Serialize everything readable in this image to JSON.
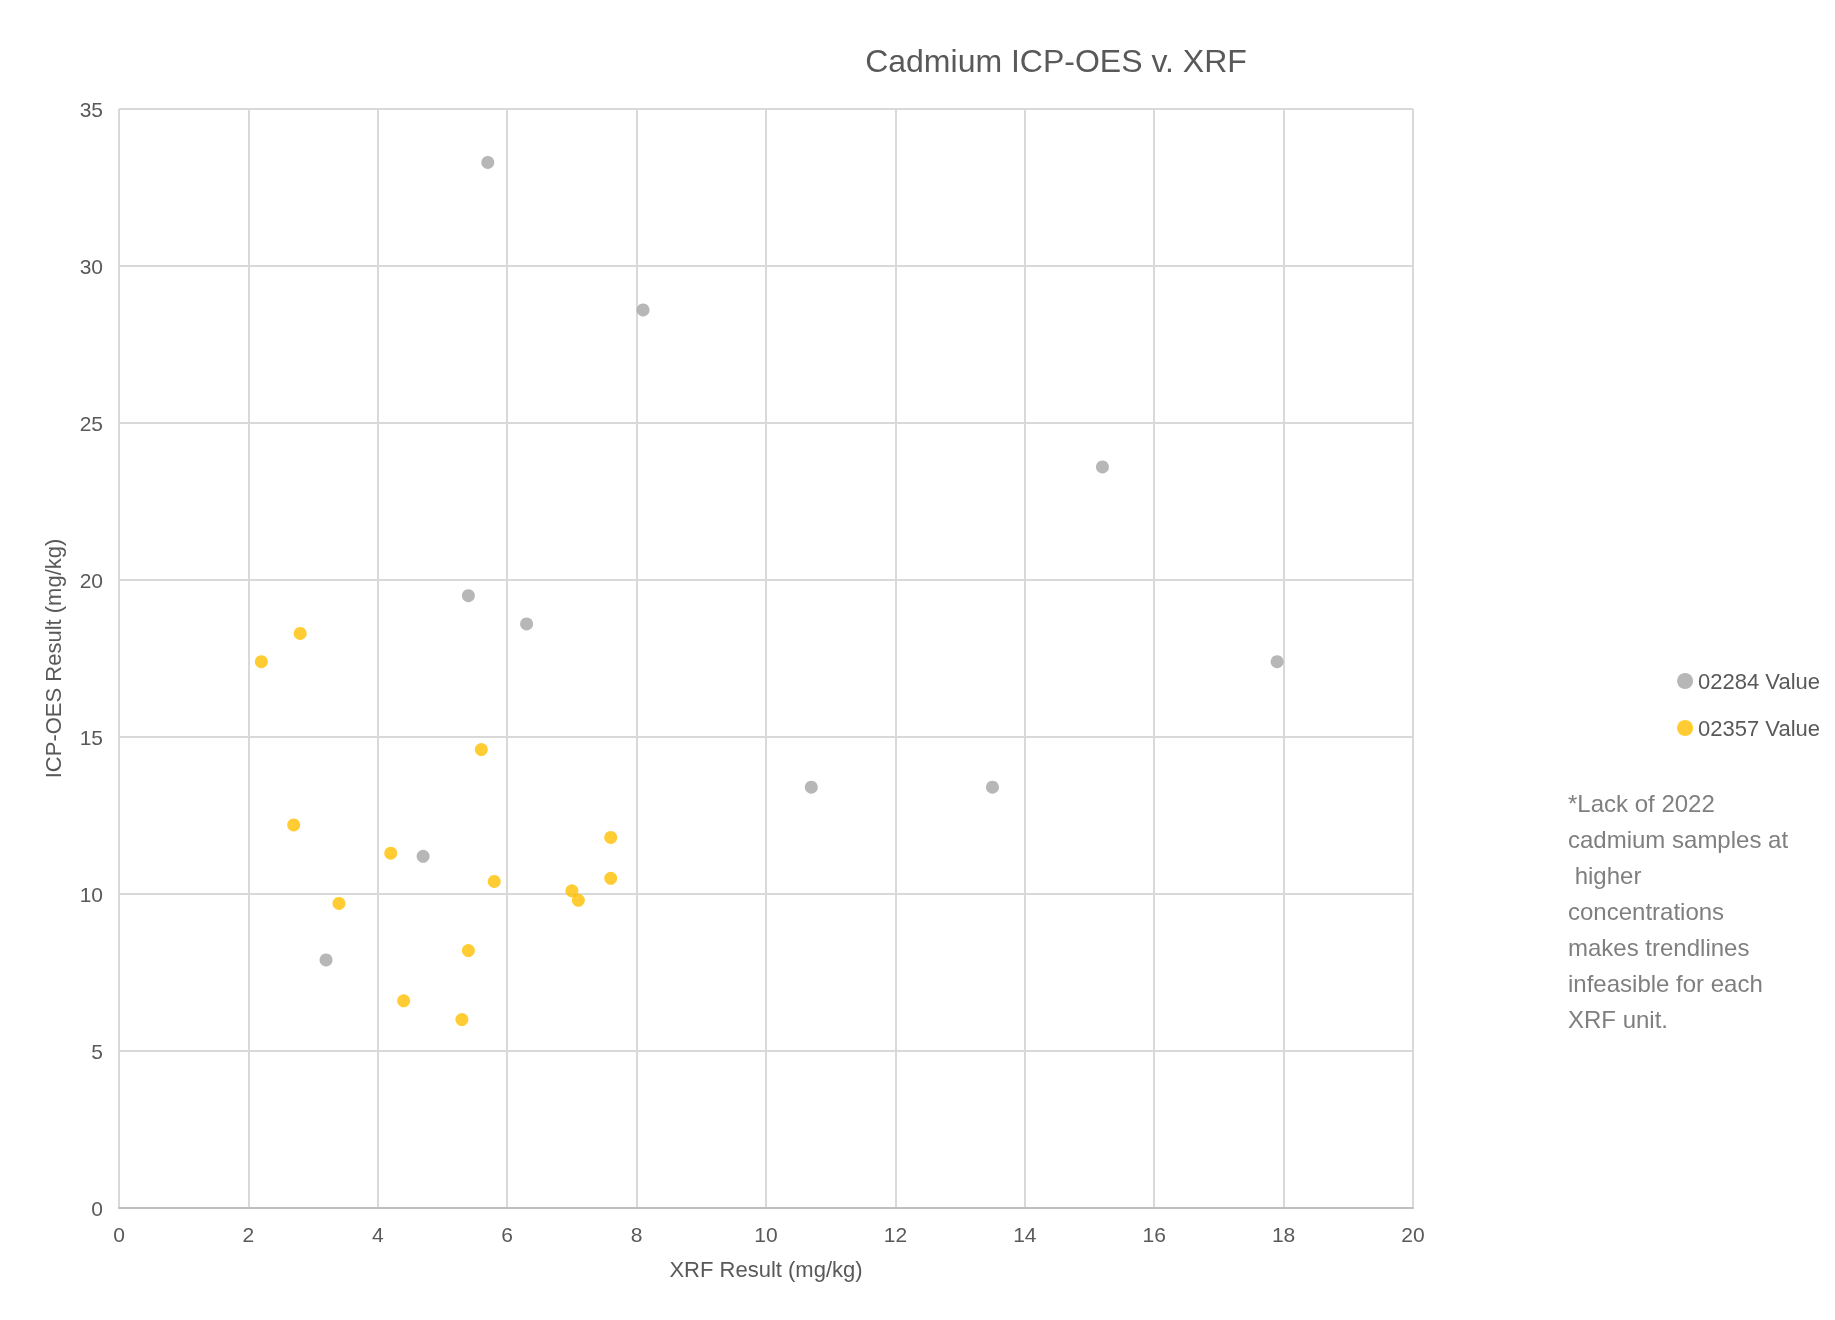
{
  "chart_data": {
    "type": "scatter",
    "title": "Cadmium ICP-OES v. XRF",
    "xlabel": "XRF Result (mg/kg)",
    "ylabel": "ICP-OES Result (mg/kg)",
    "xlim": [
      0,
      20
    ],
    "xticks": [
      0,
      2,
      4,
      6,
      8,
      10,
      12,
      14,
      16,
      18,
      20
    ],
    "ylim": [
      0,
      35
    ],
    "yticks": [
      0,
      5,
      10,
      15,
      20,
      25,
      30,
      35
    ],
    "grid": true,
    "legend": "right",
    "marker": "circle",
    "annotations": [
      "*Lack of 2022 cadmium samples at higher concentrations makes trendlines infeasible for each XRF unit."
    ],
    "series": [
      {
        "name": "02284 Value",
        "color": "#a5a5a5",
        "x": [
          5.7,
          8.1,
          15.2,
          5.4,
          6.3,
          17.9,
          10.7,
          13.5,
          4.7,
          3.2
        ],
        "values": [
          33.3,
          28.6,
          23.6,
          19.5,
          18.6,
          17.4,
          13.4,
          13.4,
          11.2,
          7.9
        ]
      },
      {
        "name": "02357 Value",
        "color": "#ffc000",
        "x": [
          2.2,
          2.8,
          5.6,
          2.7,
          4.2,
          7.6,
          3.4,
          5.8,
          7.0,
          7.1,
          7.6,
          5.4,
          4.4,
          5.3
        ],
        "values": [
          17.4,
          18.3,
          14.6,
          12.2,
          11.3,
          11.8,
          9.7,
          10.4,
          10.1,
          9.8,
          10.5,
          8.2,
          6.6,
          6.0
        ]
      }
    ]
  }
}
